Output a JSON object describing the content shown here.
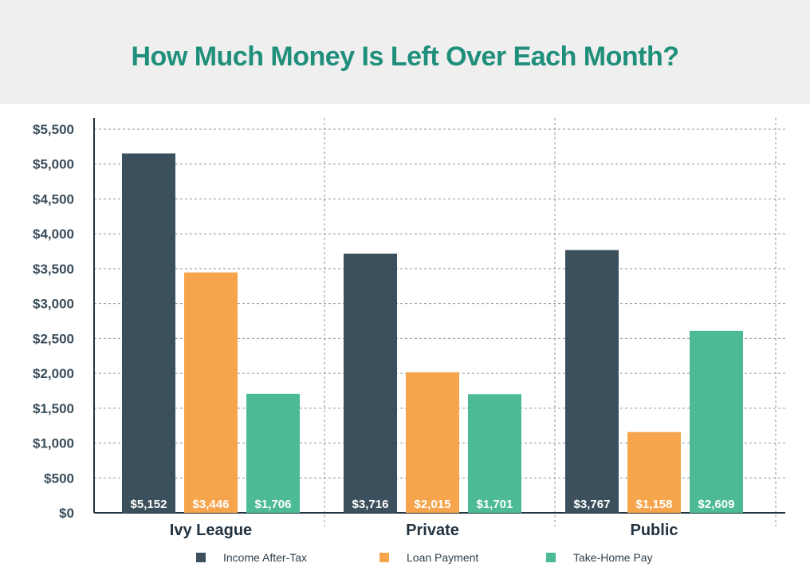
{
  "chart_data": {
    "type": "bar",
    "title": "How Much Money Is Left Over Each Month?",
    "categories": [
      "Ivy League",
      "Private",
      "Public"
    ],
    "series": [
      {
        "name": "Income After-Tax",
        "color": "#3b4f5c",
        "values": [
          5152,
          3716,
          3767
        ],
        "labels": [
          "$5,152",
          "$3,716",
          "$3,767"
        ]
      },
      {
        "name": "Loan Payment",
        "color": "#f6a54c",
        "values": [
          3446,
          2015,
          1158
        ],
        "labels": [
          "$3,446",
          "$2,015",
          "$1,158"
        ]
      },
      {
        "name": "Take-Home Pay",
        "color": "#4cbb94",
        "values": [
          1706,
          1701,
          2609
        ],
        "labels": [
          "$1,706",
          "$1,701",
          "$2,609"
        ]
      }
    ],
    "yticks": [
      0,
      500,
      1000,
      1500,
      2000,
      2500,
      3000,
      3500,
      4000,
      4500,
      5000,
      5500
    ],
    "ytick_labels": [
      "$0",
      "$500",
      "$1,000",
      "$1,500",
      "$2,000",
      "$2,500",
      "$3,000",
      "$3,500",
      "$4,000",
      "$4,500",
      "$5,000",
      "$5,500"
    ],
    "ylim": [
      0,
      5500
    ],
    "xlabel": "",
    "ylabel": "",
    "grid": true,
    "legend_position": "bottom"
  }
}
